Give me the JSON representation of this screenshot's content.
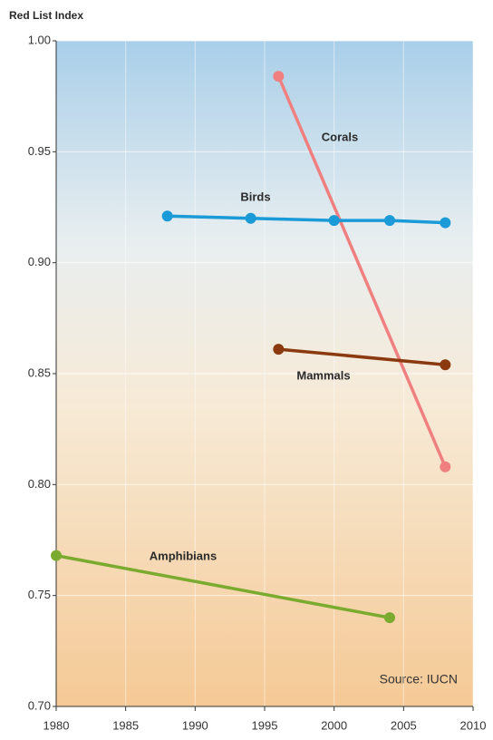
{
  "chart_data": {
    "type": "line",
    "y_axis_label": "Red List Index",
    "annotation": "Source: IUCN",
    "xlim": [
      1980,
      2010
    ],
    "xticks": [
      1980,
      1985,
      1990,
      1995,
      2000,
      2005,
      2010
    ],
    "ylim": [
      0.7,
      1.0
    ],
    "yticks": [
      {
        "value": 0.7,
        "label": "0.70"
      },
      0.75,
      {
        "value": 0.8,
        "label": "0.80"
      },
      0.85,
      {
        "value": 0.9,
        "label": "0.90"
      },
      0.95,
      {
        "value": 1.0,
        "label": "1.00"
      }
    ],
    "grid": true,
    "series": [
      {
        "name": "Corals",
        "color": "#f08080",
        "x": [
          1996,
          2008
        ],
        "values": [
          0.984,
          0.808
        ]
      },
      {
        "name": "Birds",
        "color": "#1a9ad6",
        "x": [
          1988,
          1994,
          2000,
          2004,
          2008
        ],
        "values": [
          0.921,
          0.92,
          0.919,
          0.919,
          0.918
        ]
      },
      {
        "name": "Mammals",
        "color": "#8b3a0f",
        "x": [
          1996,
          2008
        ],
        "values": [
          0.861,
          0.854
        ]
      },
      {
        "name": "Amphibians",
        "color": "#7aab2e",
        "x": [
          1980,
          2004
        ],
        "values": [
          0.768,
          0.74
        ]
      }
    ]
  }
}
